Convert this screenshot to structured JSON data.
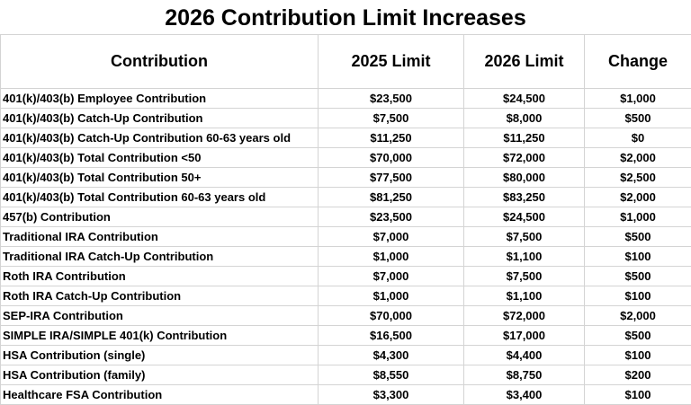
{
  "title": "2026 Contribution Limit Increases",
  "columns": [
    "Contribution",
    "2025 Limit",
    "2026 Limit",
    "Change"
  ],
  "rows": [
    {
      "name": "401(k)/403(b) Employee Contribution",
      "limit_2025": "$23,500",
      "limit_2026": "$24,500",
      "change": "$1,000"
    },
    {
      "name": "401(k)/403(b) Catch-Up Contribution",
      "limit_2025": "$7,500",
      "limit_2026": "$8,000",
      "change": "$500"
    },
    {
      "name": "401(k)/403(b) Catch-Up Contribution 60-63 years old",
      "limit_2025": "$11,250",
      "limit_2026": "$11,250",
      "change": "$0"
    },
    {
      "name": "401(k)/403(b) Total Contribution <50",
      "limit_2025": "$70,000",
      "limit_2026": "$72,000",
      "change": "$2,000"
    },
    {
      "name": "401(k)/403(b) Total Contribution 50+",
      "limit_2025": "$77,500",
      "limit_2026": "$80,000",
      "change": "$2,500"
    },
    {
      "name": "401(k)/403(b) Total Contribution 60-63 years old",
      "limit_2025": "$81,250",
      "limit_2026": "$83,250",
      "change": "$2,000"
    },
    {
      "name": "457(b) Contribution",
      "limit_2025": "$23,500",
      "limit_2026": "$24,500",
      "change": "$1,000"
    },
    {
      "name": "Traditional IRA Contribution",
      "limit_2025": "$7,000",
      "limit_2026": "$7,500",
      "change": "$500"
    },
    {
      "name": "Traditional IRA Catch-Up Contribution",
      "limit_2025": "$1,000",
      "limit_2026": "$1,100",
      "change": "$100"
    },
    {
      "name": "Roth IRA Contribution",
      "limit_2025": "$7,000",
      "limit_2026": "$7,500",
      "change": "$500"
    },
    {
      "name": "Roth IRA Catch-Up Contribution",
      "limit_2025": "$1,000",
      "limit_2026": "$1,100",
      "change": "$100"
    },
    {
      "name": "SEP-IRA Contribution",
      "limit_2025": "$70,000",
      "limit_2026": "$72,000",
      "change": "$2,000"
    },
    {
      "name": "SIMPLE IRA/SIMPLE 401(k) Contribution",
      "limit_2025": "$16,500",
      "limit_2026": "$17,000",
      "change": "$500"
    },
    {
      "name": "HSA Contribution (single)",
      "limit_2025": "$4,300",
      "limit_2026": "$4,400",
      "change": "$100"
    },
    {
      "name": "HSA Contribution (family)",
      "limit_2025": "$8,550",
      "limit_2026": "$8,750",
      "change": "$200"
    },
    {
      "name": "Healthcare FSA Contribution",
      "limit_2025": "$3,300",
      "limit_2026": "$3,400",
      "change": "$100"
    }
  ]
}
